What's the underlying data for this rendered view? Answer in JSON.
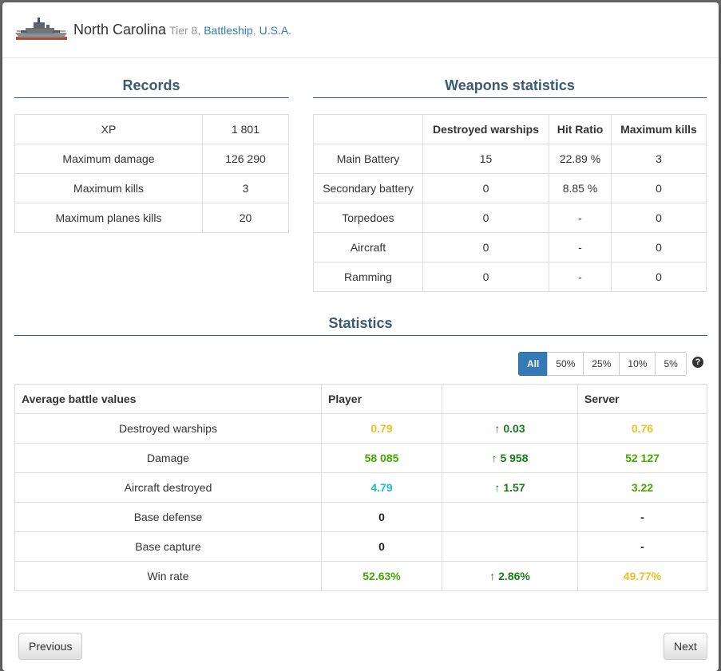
{
  "header": {
    "ship_name": "North Carolina",
    "tier": "Tier 8,",
    "type_link": "Battleship",
    "separator": ",",
    "nation_link": "U.S.A."
  },
  "records": {
    "title": "Records",
    "rows": [
      {
        "label": "XP",
        "value": "1 801"
      },
      {
        "label": "Maximum damage",
        "value": "126 290"
      },
      {
        "label": "Maximum kills",
        "value": "3"
      },
      {
        "label": "Maximum planes kills",
        "value": "20"
      }
    ]
  },
  "weapons": {
    "title": "Weapons statistics",
    "headers": [
      "",
      "Destroyed warships",
      "Hit Ratio",
      "Maximum kills"
    ],
    "rows": [
      {
        "name": "Main Battery",
        "destroyed": "15",
        "hit_ratio": "22.89 %",
        "max_kills": "3"
      },
      {
        "name": "Secondary battery",
        "destroyed": "0",
        "hit_ratio": "8.85 %",
        "max_kills": "0"
      },
      {
        "name": "Torpedoes",
        "destroyed": "0",
        "hit_ratio": "-",
        "max_kills": "0"
      },
      {
        "name": "Aircraft",
        "destroyed": "0",
        "hit_ratio": "-",
        "max_kills": "0"
      },
      {
        "name": "Ramming",
        "destroyed": "0",
        "hit_ratio": "-",
        "max_kills": "0"
      }
    ]
  },
  "statistics": {
    "title": "Statistics",
    "filters": [
      "All",
      "50%",
      "25%",
      "10%",
      "5%"
    ],
    "active_filter": "All",
    "headers": [
      "Average battle values",
      "Player",
      "",
      "Server"
    ],
    "rows": [
      {
        "label": "Destroyed warships",
        "player": "0.79",
        "player_color": "#f0c020",
        "diff": "0.03",
        "diff_up": true,
        "server": "0.76",
        "server_color": "#f0c020"
      },
      {
        "label": "Damage",
        "player": "58 085",
        "player_color": "#44a800",
        "diff": "5 958",
        "diff_up": true,
        "server": "52 127",
        "server_color": "#44a800"
      },
      {
        "label": "Aircraft destroyed",
        "player": "4.79",
        "player_color": "#1ec0c0",
        "diff": "1.57",
        "diff_up": true,
        "server": "3.22",
        "server_color": "#44a800"
      },
      {
        "label": "Base defense",
        "player": "0",
        "player_color": "#222222",
        "diff": "",
        "diff_up": false,
        "server": "-",
        "server_color": "#222222"
      },
      {
        "label": "Base capture",
        "player": "0",
        "player_color": "#222222",
        "diff": "",
        "diff_up": false,
        "server": "-",
        "server_color": "#222222"
      },
      {
        "label": "Win rate",
        "player": "52.63%",
        "player_color": "#44a800",
        "diff": "2.86%",
        "diff_up": true,
        "server": "49.77%",
        "server_color": "#f0c020"
      }
    ],
    "diff_color": "#1a7a1a"
  },
  "footer": {
    "previous_label": "Previous",
    "next_label": "Next"
  },
  "icons": {
    "help": "question-circle-icon",
    "up": "arrow-up-icon",
    "ship": "ship-icon"
  }
}
